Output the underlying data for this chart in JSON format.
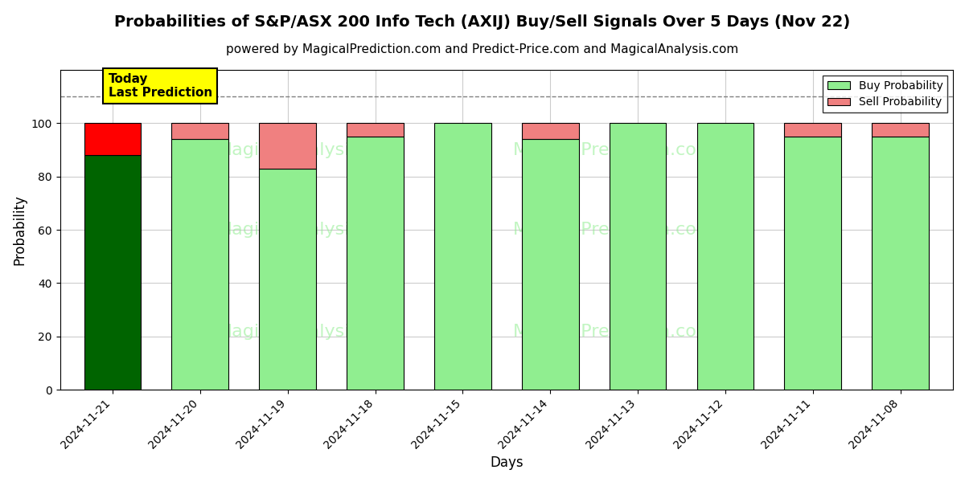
{
  "title": "Probabilities of S&P/ASX 200 Info Tech (AXIJ) Buy/Sell Signals Over 5 Days (Nov 22)",
  "subtitle": "powered by MagicalPrediction.com and Predict-Price.com and MagicalAnalysis.com",
  "xlabel": "Days",
  "ylabel": "Probability",
  "categories": [
    "2024-11-21",
    "2024-11-20",
    "2024-11-19",
    "2024-11-18",
    "2024-11-15",
    "2024-11-14",
    "2024-11-13",
    "2024-11-12",
    "2024-11-11",
    "2024-11-08"
  ],
  "buy_values": [
    88,
    94,
    83,
    95,
    100,
    94,
    100,
    100,
    95,
    95
  ],
  "sell_values": [
    12,
    6,
    17,
    5,
    0,
    6,
    0,
    0,
    5,
    5
  ],
  "today_buy_color": "#006400",
  "today_sell_color": "#FF0000",
  "buy_color": "#90EE90",
  "sell_color": "#F08080",
  "bar_edge_color": "#000000",
  "ylim": [
    0,
    120
  ],
  "yticks": [
    0,
    20,
    40,
    60,
    80,
    100
  ],
  "dashed_line_y": 110,
  "today_label_text": "Today\nLast Prediction",
  "today_label_bg": "#FFFF00",
  "legend_buy_label": "Buy Probability",
  "legend_sell_label": "Sell Probability",
  "background_color": "#ffffff",
  "grid_color": "#cccccc",
  "watermark_color": "#90EE90",
  "title_fontsize": 14,
  "subtitle_fontsize": 11,
  "axis_label_fontsize": 12
}
